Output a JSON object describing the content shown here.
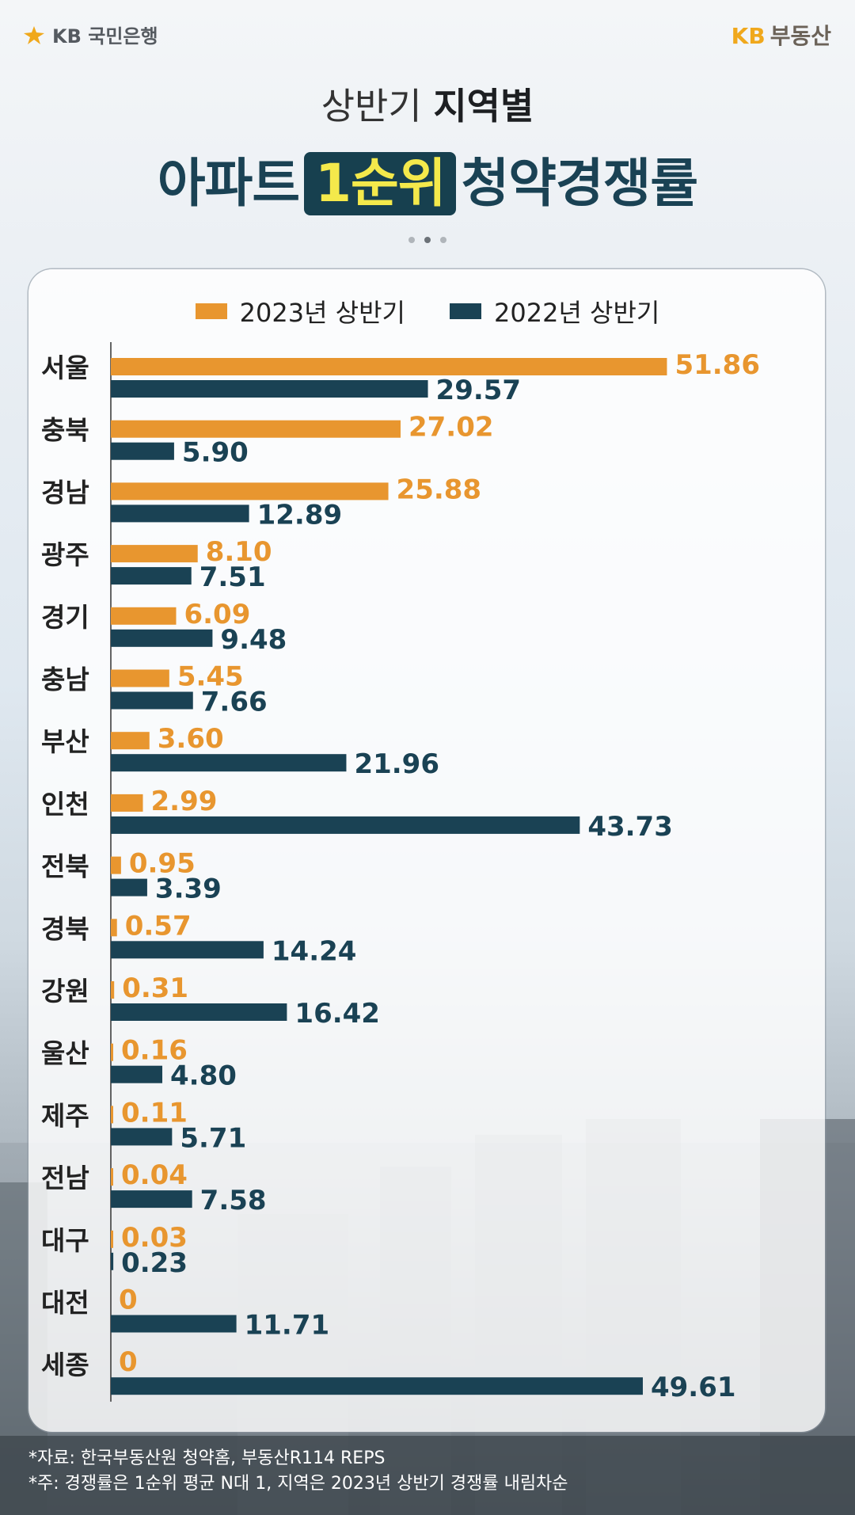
{
  "brand": {
    "left_logo_text": "KB 국민은행",
    "right_logo_kb": "KB",
    "right_logo_text": "부동산"
  },
  "title": {
    "line1_light": "상반기 ",
    "line1_bold": "지역별",
    "line2_pre": "아파트",
    "line2_highlight": "1순위",
    "line2_post": "청약경쟁률"
  },
  "colors": {
    "series_2023": "#e8962f",
    "series_2022": "#1a4254"
  },
  "chart_data": {
    "type": "bar",
    "orientation": "horizontal",
    "categories": [
      "서울",
      "충북",
      "경남",
      "광주",
      "경기",
      "충남",
      "부산",
      "인천",
      "전북",
      "경북",
      "강원",
      "울산",
      "제주",
      "전남",
      "대구",
      "대전",
      "세종"
    ],
    "series": [
      {
        "name": "2023년 상반기",
        "values": [
          51.86,
          27.02,
          25.88,
          8.1,
          6.09,
          5.45,
          3.6,
          2.99,
          0.95,
          0.57,
          0.31,
          0.16,
          0.11,
          0.04,
          0.03,
          0,
          0
        ]
      },
      {
        "name": "2022년 상반기",
        "values": [
          29.57,
          5.9,
          12.89,
          7.51,
          9.48,
          7.66,
          21.96,
          43.73,
          3.39,
          14.24,
          16.42,
          4.8,
          5.71,
          7.58,
          0.23,
          11.71,
          49.61
        ]
      }
    ],
    "value_labels": {
      "2023": [
        "51.86",
        "27.02",
        "25.88",
        "8.10",
        "6.09",
        "5.45",
        "3.60",
        "2.99",
        "0.95",
        "0.57",
        "0.31",
        "0.16",
        "0.11",
        "0.04",
        "0.03",
        "0",
        "0"
      ],
      "2022": [
        "29.57",
        "5.90",
        "12.89",
        "7.51",
        "9.48",
        "7.66",
        "21.96",
        "43.73",
        "3.39",
        "14.24",
        "16.42",
        "4.80",
        "5.71",
        "7.58",
        "0.23",
        "11.71",
        "49.61"
      ]
    },
    "xlim": [
      0,
      55
    ],
    "legend": "top-center",
    "grid": false
  },
  "footnotes": [
    "*자료: 한국부동산원 청약홈, 부동산R114 REPS",
    "*주: 경쟁률은 1순위 평균 N대 1, 지역은 2023년 상반기 경쟁률 내림차순"
  ]
}
